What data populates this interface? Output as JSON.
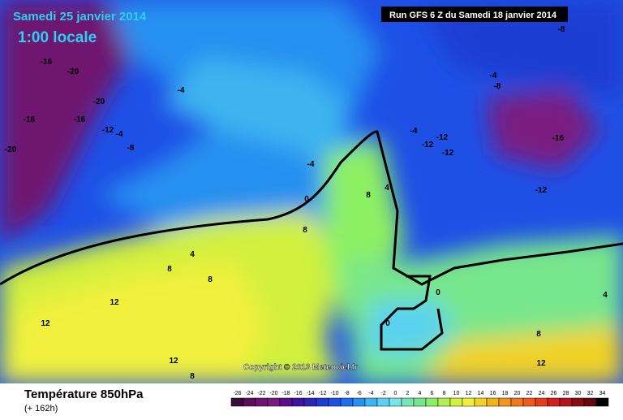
{
  "header": {
    "date": "Samedi 25 janvier 2014",
    "time": "1:00 locale",
    "run": "Run GFS 6 Z du Samedi 18 janvier 2014"
  },
  "copyright": "Copyright © 2013 Meteociel.fr",
  "footer": {
    "title": "Température 850hPa",
    "lead": "(+ 162h)"
  },
  "legend": {
    "values": [
      -26,
      -24,
      -22,
      -20,
      -18,
      -16,
      -14,
      -12,
      -10,
      -8,
      -6,
      -4,
      -2,
      0,
      2,
      4,
      6,
      8,
      10,
      12,
      14,
      16,
      18,
      20,
      22,
      24,
      26,
      28,
      30,
      32,
      34
    ],
    "colors": [
      "#3c0a3c",
      "#5a0f5a",
      "#6e1470",
      "#7a1a80",
      "#5a0f8c",
      "#3c14a0",
      "#2828b4",
      "#1e3cd2",
      "#1e50e6",
      "#1e6ef0",
      "#2890f0",
      "#3cb4f0",
      "#5ad2f0",
      "#78e6e6",
      "#78e6b4",
      "#78e68c",
      "#8cf064",
      "#b4f050",
      "#d2f03c",
      "#f0f03c",
      "#f0d228",
      "#f0b41e",
      "#f0961e",
      "#f0781e",
      "#f05a1e",
      "#e63c1e",
      "#d21e1e",
      "#b4141e",
      "#8c0a14",
      "#640a0a",
      "#000000"
    ]
  },
  "contour_labels": [
    -16,
    -20,
    -20,
    -16,
    -16,
    -12,
    -4,
    -8,
    -20,
    -4,
    -4,
    0,
    8,
    8,
    4,
    4,
    8,
    8,
    12,
    12,
    12,
    8,
    0,
    0,
    -4,
    -8,
    -8,
    -4,
    -12,
    -12,
    -12,
    -16,
    -12,
    4,
    8,
    12
  ]
}
